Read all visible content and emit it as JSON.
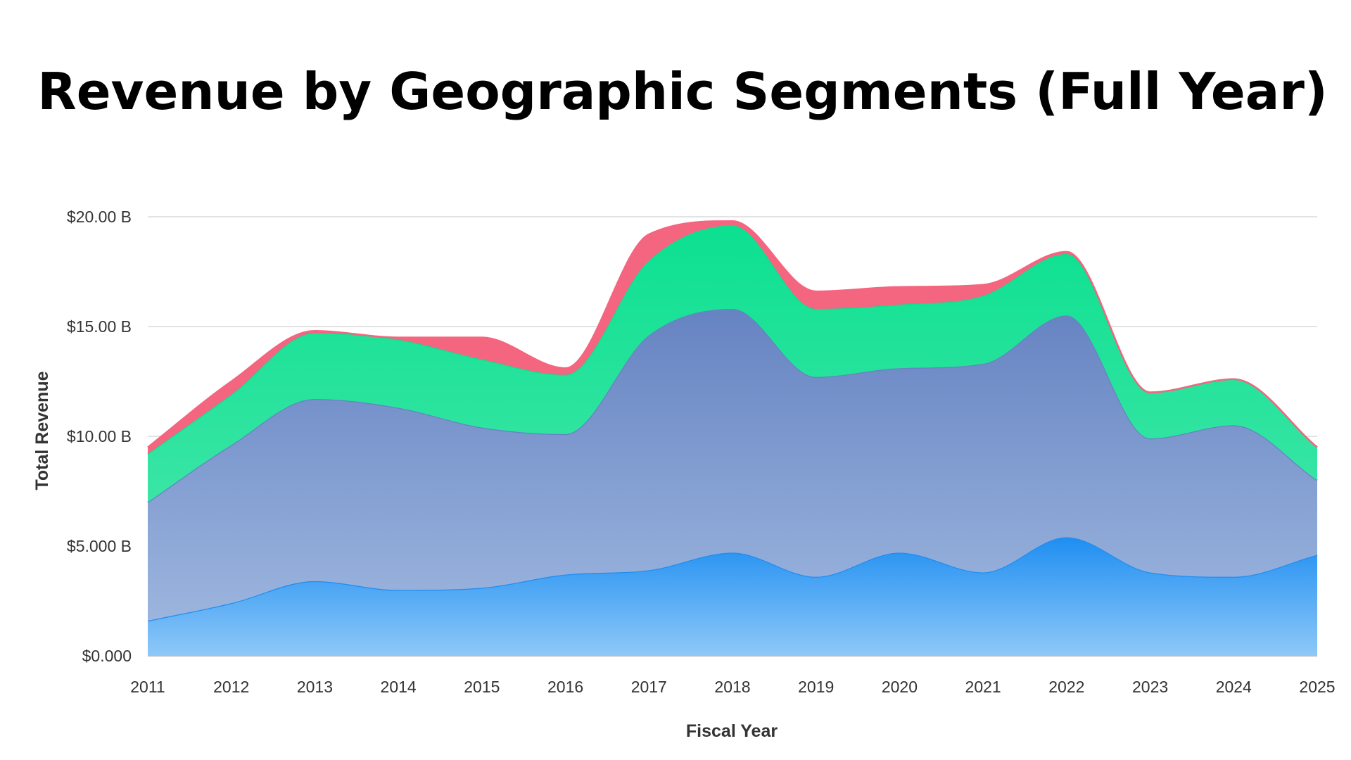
{
  "title": "Revenue by Geographic Segments (Full Year)",
  "chart_data": {
    "type": "area",
    "stacked": true,
    "smooth": true,
    "title": "Revenue by Geographic Segments (Full Year)",
    "xlabel": "Fiscal Year",
    "ylabel": "Total Revenue",
    "x": [
      "2011",
      "2012",
      "2013",
      "2014",
      "2015",
      "2016",
      "2017",
      "2018",
      "2019",
      "2020",
      "2021",
      "2022",
      "2023",
      "2024",
      "2025"
    ],
    "ylim": [
      0,
      20
    ],
    "y_ticks": [
      0,
      5,
      10,
      15,
      20
    ],
    "y_tick_labels": [
      "$0.000",
      "$5.000 B",
      "$10.00 B",
      "$15.00 B",
      "$20.00 B"
    ],
    "grid": true,
    "legend": "none",
    "unit": "$ billions",
    "series": [
      {
        "color_top": "#1f8ef1",
        "color_bottom": "#8ec8f8",
        "values": [
          1.6,
          2.4,
          3.4,
          3.0,
          3.1,
          3.7,
          3.9,
          4.7,
          3.6,
          4.7,
          3.8,
          5.4,
          3.8,
          3.6,
          4.6
        ]
      },
      {
        "color_top": "#6683c2",
        "color_bottom": "#9cb5de",
        "values": [
          5.4,
          7.2,
          8.3,
          8.3,
          7.3,
          6.4,
          10.7,
          11.1,
          9.1,
          8.4,
          9.5,
          10.1,
          6.1,
          6.9,
          3.4
        ]
      },
      {
        "color_top": "#0ce090",
        "color_bottom": "#3ae5a5",
        "values": [
          2.2,
          2.3,
          3.0,
          3.1,
          3.1,
          2.7,
          3.4,
          3.8,
          3.1,
          2.9,
          3.1,
          2.8,
          2.1,
          2.1,
          1.5
        ]
      },
      {
        "color_top": "#f4657f",
        "color_bottom": "#f4657f",
        "values": [
          0.3,
          0.6,
          0.1,
          0.1,
          1.0,
          0.3,
          1.2,
          0.2,
          0.8,
          0.8,
          0.5,
          0.1,
          0.0,
          0.0,
          0.0
        ]
      }
    ]
  }
}
